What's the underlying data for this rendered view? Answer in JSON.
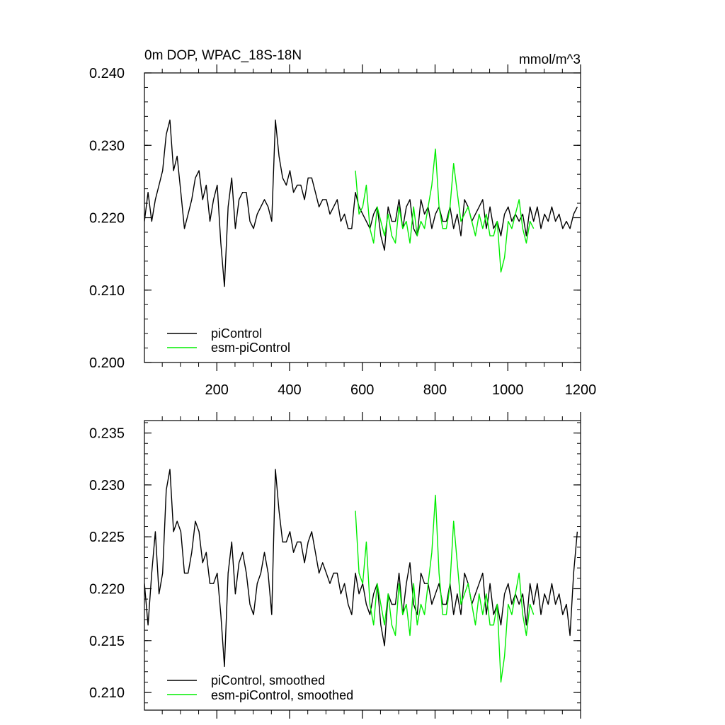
{
  "chart_data": [
    {
      "type": "line",
      "title_left": "0m DOP, WPAC_18S-18N",
      "title_right": "mmol/m^3",
      "xlim": [
        1,
        1200
      ],
      "ylim": [
        0.2,
        0.24
      ],
      "xticks": [
        200,
        400,
        600,
        800,
        1000,
        1200
      ],
      "xtick_labels": [
        "200",
        "400",
        "600",
        "800",
        "1000",
        "1200"
      ],
      "yticks": [
        0.2,
        0.21,
        0.22,
        0.23,
        0.24
      ],
      "ytick_labels": [
        "0.200",
        "0.210",
        "0.220",
        "0.230",
        "0.240"
      ],
      "legend_location": "lower-left",
      "series": [
        {
          "name": "piControl",
          "color": "#000000",
          "x_start": 1,
          "x_step": 10,
          "values": [
            0.2195,
            0.2235,
            0.2195,
            0.2225,
            0.2245,
            0.2265,
            0.2315,
            0.2335,
            0.2265,
            0.2285,
            0.2235,
            0.2185,
            0.2205,
            0.2225,
            0.2255,
            0.2265,
            0.2225,
            0.2245,
            0.2195,
            0.2225,
            0.2245,
            0.2165,
            0.2105,
            0.2215,
            0.2255,
            0.2185,
            0.2225,
            0.2235,
            0.2235,
            0.2195,
            0.2185,
            0.2205,
            0.2215,
            0.2225,
            0.2215,
            0.2195,
            0.2335,
            0.2285,
            0.2255,
            0.2245,
            0.2265,
            0.2235,
            0.2245,
            0.2245,
            0.2225,
            0.2255,
            0.2255,
            0.2235,
            0.2215,
            0.2225,
            0.2225,
            0.2205,
            0.2215,
            0.2225,
            0.2195,
            0.2205,
            0.2185,
            0.2185,
            0.2235,
            0.2215,
            0.2205,
            0.2195,
            0.2185,
            0.2205,
            0.2215,
            0.2175,
            0.2155,
            0.2215,
            0.2195,
            0.2195,
            0.2225,
            0.2185,
            0.2215,
            0.2225,
            0.2185,
            0.2175,
            0.2225,
            0.2205,
            0.2215,
            0.2185,
            0.2205,
            0.2215,
            0.2195,
            0.2195,
            0.2215,
            0.2185,
            0.2205,
            0.2175,
            0.2225,
            0.2215,
            0.2195,
            0.2205,
            0.2215,
            0.2225,
            0.2185,
            0.2215,
            0.2185,
            0.2195,
            0.2175,
            0.2205,
            0.2215,
            0.2195,
            0.2205,
            0.2195,
            0.2205,
            0.2175,
            0.2215,
            0.2195,
            0.2215,
            0.2185,
            0.2205,
            0.2195,
            0.2215,
            0.2195,
            0.2205,
            0.2185,
            0.2195,
            0.2185,
            0.2205,
            0.2215
          ]
        },
        {
          "name": "esm-piControl",
          "color": "#00ee00",
          "x_start": 581,
          "x_step": 10,
          "values": [
            0.2265,
            0.2205,
            0.2215,
            0.2245,
            0.2185,
            0.2165,
            0.2215,
            0.2195,
            0.2175,
            0.2205,
            0.2175,
            0.2165,
            0.2215,
            0.2185,
            0.2195,
            0.2165,
            0.2215,
            0.2175,
            0.2195,
            0.2185,
            0.2215,
            0.2245,
            0.2295,
            0.2215,
            0.2185,
            0.2185,
            0.2215,
            0.2275,
            0.2235,
            0.2195,
            0.2205,
            0.2215,
            0.2195,
            0.2175,
            0.2205,
            0.2185,
            0.2205,
            0.2175,
            0.2175,
            0.2195,
            0.2125,
            0.2145,
            0.2195,
            0.2185,
            0.2205,
            0.2225,
            0.2185,
            0.2165,
            0.2195,
            0.2185
          ]
        }
      ]
    },
    {
      "type": "line",
      "xlim": [
        1,
        1200
      ],
      "ylim": [
        0.2083,
        0.2362
      ],
      "xticks": [
        200,
        400,
        600,
        800,
        1000,
        1200
      ],
      "yticks": [
        0.21,
        0.215,
        0.22,
        0.225,
        0.23,
        0.235
      ],
      "ytick_labels": [
        "0.210",
        "0.215",
        "0.220",
        "0.225",
        "0.230",
        "0.235"
      ],
      "legend_location": "lower-left",
      "series": [
        {
          "name": "piControl, smoothed",
          "color": "#000000",
          "x_start": 1,
          "x_step": 10,
          "values": [
            0.2205,
            0.2165,
            0.2215,
            0.2255,
            0.2195,
            0.2215,
            0.2295,
            0.2315,
            0.2255,
            0.2265,
            0.2255,
            0.2215,
            0.2215,
            0.2235,
            0.2265,
            0.2255,
            0.2225,
            0.2235,
            0.2205,
            0.2205,
            0.2215,
            0.2175,
            0.2125,
            0.2215,
            0.2245,
            0.2195,
            0.2225,
            0.2235,
            0.2215,
            0.2185,
            0.2175,
            0.2205,
            0.2215,
            0.2235,
            0.2215,
            0.2175,
            0.2315,
            0.2275,
            0.2245,
            0.2245,
            0.2255,
            0.2235,
            0.2245,
            0.2245,
            0.2225,
            0.2245,
            0.2255,
            0.2235,
            0.2215,
            0.2225,
            0.2215,
            0.2205,
            0.2215,
            0.2215,
            0.2195,
            0.2205,
            0.2185,
            0.2175,
            0.2215,
            0.2195,
            0.2205,
            0.2185,
            0.2175,
            0.2195,
            0.2205,
            0.2165,
            0.2145,
            0.2195,
            0.2185,
            0.2185,
            0.2215,
            0.2175,
            0.2205,
            0.2225,
            0.2185,
            0.2175,
            0.2215,
            0.2205,
            0.2205,
            0.2185,
            0.2195,
            0.2205,
            0.2185,
            0.2185,
            0.2205,
            0.2175,
            0.2195,
            0.2175,
            0.2215,
            0.2205,
            0.2185,
            0.2195,
            0.2205,
            0.2215,
            0.2175,
            0.2205,
            0.2175,
            0.2185,
            0.2165,
            0.2195,
            0.2205,
            0.2185,
            0.2195,
            0.2185,
            0.2195,
            0.2165,
            0.2205,
            0.2185,
            0.2205,
            0.2175,
            0.2195,
            0.2185,
            0.2205,
            0.2185,
            0.2195,
            0.2175,
            0.2185,
            0.2155,
            0.2215,
            0.2255
          ]
        },
        {
          "name": "esm-piControl, smoothed",
          "color": "#00ee00",
          "x_start": 581,
          "x_step": 10,
          "values": [
            0.2275,
            0.2215,
            0.2205,
            0.2245,
            0.2185,
            0.2165,
            0.2205,
            0.2185,
            0.2165,
            0.2195,
            0.2165,
            0.2155,
            0.2205,
            0.2175,
            0.2185,
            0.2155,
            0.2205,
            0.2165,
            0.2185,
            0.2175,
            0.2205,
            0.2235,
            0.229,
            0.2215,
            0.2175,
            0.2175,
            0.2205,
            0.2265,
            0.2225,
            0.2185,
            0.2195,
            0.2205,
            0.2185,
            0.2165,
            0.2195,
            0.2175,
            0.2195,
            0.2165,
            0.2165,
            0.2185,
            0.211,
            0.2135,
            0.2185,
            0.2175,
            0.2195,
            0.2215,
            0.2175,
            0.2155,
            0.2185,
            0.2175
          ]
        }
      ]
    }
  ]
}
